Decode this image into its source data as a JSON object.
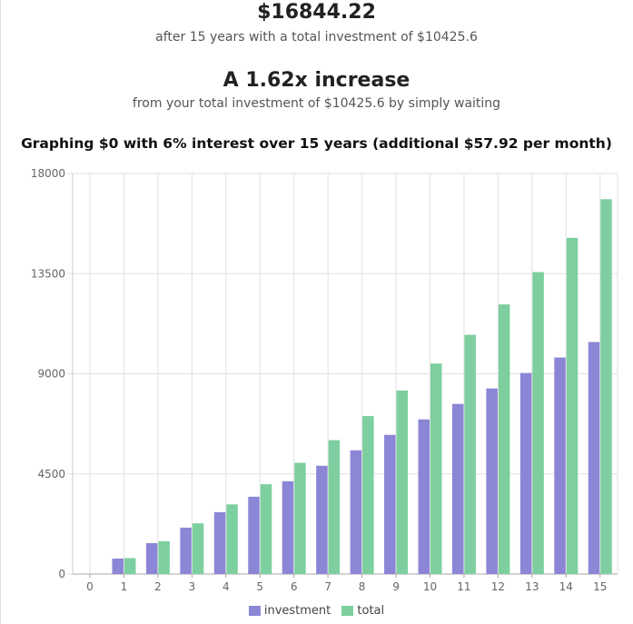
{
  "summary": {
    "total_value": "$16844.22",
    "total_sub": "after 15 years with a total investment of $10425.6",
    "multiplier": "A 1.62x increase",
    "multiplier_sub": "from your total investment of $10425.6 by simply waiting"
  },
  "chart_data": {
    "type": "bar",
    "title": "Graphing $0 with 6% interest over 15 years (additional $57.92 per month)",
    "xlabel": "",
    "ylabel": "",
    "categories": [
      "0",
      "1",
      "2",
      "3",
      "4",
      "5",
      "6",
      "7",
      "8",
      "9",
      "10",
      "11",
      "12",
      "13",
      "14",
      "15"
    ],
    "series": [
      {
        "name": "investment",
        "color": "#8b87d6",
        "values": [
          0,
          695.04,
          1390.08,
          2085.12,
          2780.16,
          3475.2,
          4170.24,
          4865.28,
          5560.32,
          6255.36,
          6950.4,
          7645.44,
          8340.48,
          9035.52,
          9730.56,
          10425.6
        ]
      },
      {
        "name": "total",
        "color": "#7ecf9f",
        "values": [
          0,
          715.4,
          1473.9,
          2279.2,
          3131.7,
          4037.0,
          4999.0,
          6017.0,
          7099.0,
          8245.0,
          9460.0,
          10750.0,
          12118.0,
          13570.0,
          15108.0,
          16844.22
        ]
      }
    ],
    "ylim": [
      0,
      18000
    ],
    "yticks": [
      "0",
      "4500",
      "9000",
      "13500",
      "18000"
    ],
    "ytick_values": [
      0,
      4500,
      9000,
      13500,
      18000
    ],
    "grid": true,
    "legend_position": "bottom-center"
  }
}
